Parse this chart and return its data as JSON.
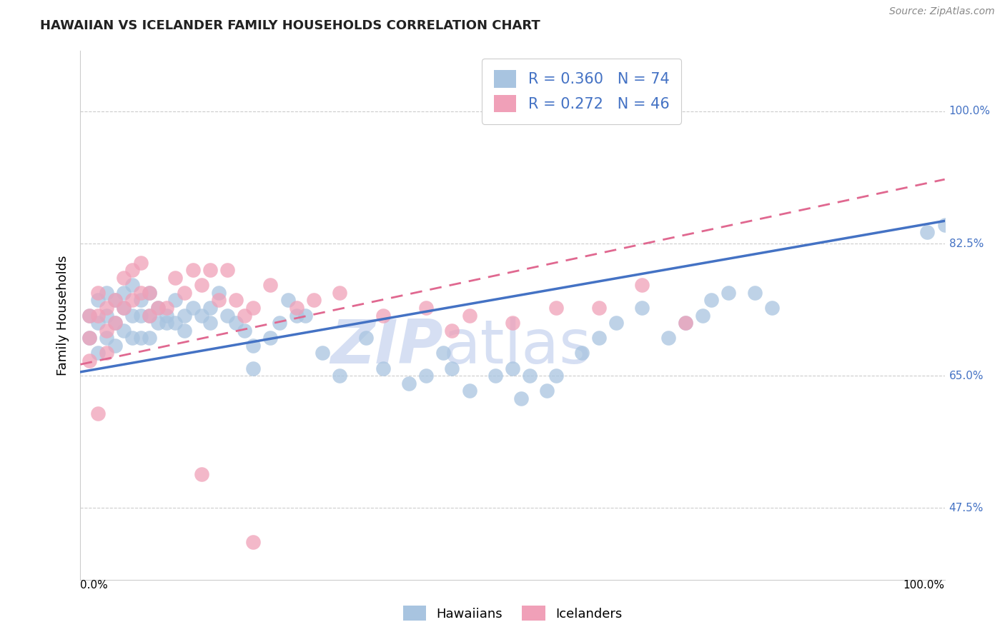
{
  "title": "HAWAIIAN VS ICELANDER FAMILY HOUSEHOLDS CORRELATION CHART",
  "source": "Source: ZipAtlas.com",
  "ylabel": "Family Households",
  "yticks": [
    47.5,
    65.0,
    82.5,
    100.0
  ],
  "ytick_labels": [
    "47.5%",
    "65.0%",
    "82.5%",
    "100.0%"
  ],
  "xlim": [
    0,
    100
  ],
  "ylim": [
    38,
    108
  ],
  "hawaiian_R": 0.36,
  "hawaiian_N": 74,
  "icelander_R": 0.272,
  "icelander_N": 46,
  "hawaiian_color": "#a8c4e0",
  "icelander_color": "#f0a0b8",
  "regression_blue": "#4472c4",
  "regression_pink": "#e06890",
  "watermark_zip": "ZIP",
  "watermark_atlas": "atlas",
  "watermark_color": "#ccd8f0",
  "grid_color": "#cccccc",
  "title_fontsize": 13,
  "tick_fontsize": 11,
  "legend_fontsize": 15,
  "hawaiian_x": [
    1,
    1,
    2,
    2,
    2,
    3,
    3,
    3,
    4,
    4,
    4,
    5,
    5,
    5,
    6,
    6,
    6,
    7,
    7,
    7,
    8,
    8,
    8,
    9,
    9,
    10,
    10,
    11,
    11,
    12,
    12,
    13,
    14,
    15,
    15,
    16,
    17,
    18,
    19,
    20,
    20,
    22,
    23,
    24,
    25,
    26,
    28,
    30,
    33,
    35,
    38,
    40,
    42,
    43,
    45,
    48,
    50,
    51,
    52,
    54,
    55,
    58,
    60,
    62,
    65,
    68,
    70,
    72,
    73,
    75,
    78,
    80,
    98,
    100
  ],
  "hawaiian_y": [
    73,
    70,
    75,
    72,
    68,
    76,
    73,
    70,
    75,
    72,
    69,
    76,
    74,
    71,
    77,
    73,
    70,
    75,
    73,
    70,
    76,
    73,
    70,
    74,
    72,
    73,
    72,
    75,
    72,
    73,
    71,
    74,
    73,
    74,
    72,
    76,
    73,
    72,
    71,
    69,
    66,
    70,
    72,
    75,
    73,
    73,
    68,
    65,
    70,
    66,
    64,
    65,
    68,
    66,
    63,
    65,
    66,
    62,
    65,
    63,
    65,
    68,
    70,
    72,
    74,
    70,
    72,
    73,
    75,
    76,
    76,
    74,
    84,
    85
  ],
  "icelander_x": [
    1,
    1,
    1,
    2,
    2,
    2,
    3,
    3,
    3,
    4,
    4,
    5,
    5,
    6,
    6,
    7,
    7,
    8,
    8,
    9,
    10,
    11,
    12,
    13,
    14,
    15,
    16,
    17,
    18,
    19,
    20,
    22,
    25,
    27,
    30,
    35,
    40,
    43,
    45,
    50,
    55,
    60,
    65,
    70,
    14,
    20
  ],
  "icelander_y": [
    73,
    70,
    67,
    76,
    73,
    60,
    74,
    71,
    68,
    75,
    72,
    78,
    74,
    79,
    75,
    80,
    76,
    76,
    73,
    74,
    74,
    78,
    76,
    79,
    77,
    79,
    75,
    79,
    75,
    73,
    74,
    77,
    74,
    75,
    76,
    73,
    74,
    71,
    73,
    72,
    74,
    74,
    77,
    72,
    52,
    43
  ],
  "reg_blue_x0": 0,
  "reg_blue_y0": 65.5,
  "reg_blue_x1": 100,
  "reg_blue_y1": 85.5,
  "reg_pink_x0": 0,
  "reg_pink_y0": 66.5,
  "reg_pink_x1": 100,
  "reg_pink_y1": 91.0
}
